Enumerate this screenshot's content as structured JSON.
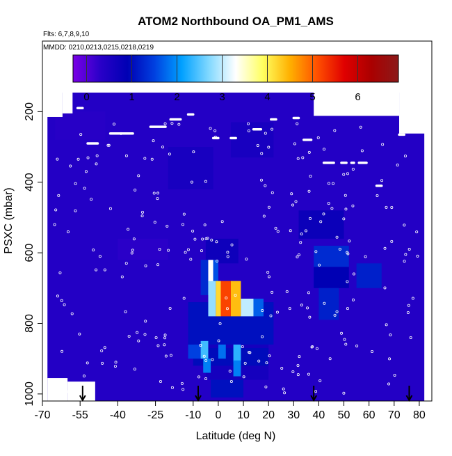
{
  "chart_data": {
    "type": "heatmap",
    "title": "ATOM2 Northbound OA_PM1_AMS",
    "flights_label": "Flts: 6,7,8,9,10",
    "mmdd_label": "MMDD: 0210,0213,0215,0218,0219",
    "xlabel": "Latitude (deg N)",
    "ylabel": "PSXC (mbar)",
    "xlim": [
      -70,
      85
    ],
    "ylim": [
      1020,
      0
    ],
    "x_ticks": [
      -70,
      -55,
      -40,
      -25,
      -10,
      0,
      10,
      20,
      30,
      40,
      50,
      60,
      70,
      80
    ],
    "x_tick_labels": [
      "-70",
      "-55",
      "-40",
      "-25",
      "-10",
      "0",
      "10",
      "20",
      "30",
      "40",
      "50",
      "60",
      "70",
      "80"
    ],
    "y_ticks": [
      200,
      400,
      600,
      800,
      1000
    ],
    "y_tick_labels": [
      "200",
      "400",
      "600",
      "800",
      "1000"
    ],
    "colorbar": {
      "min": -0.3,
      "max": 6.9,
      "ticks": [
        0,
        1,
        2,
        3,
        4,
        5,
        6
      ],
      "tick_labels": [
        "0",
        "1",
        "2",
        "3",
        "4",
        "5",
        "6"
      ],
      "colors": [
        "#7a00e6",
        "#2a00c8",
        "#0000b4",
        "#0040e0",
        "#00a0ff",
        "#80d8ff",
        "#ffffff",
        "#ffff60",
        "#ffb000",
        "#ff5000",
        "#e00000",
        "#aa0000",
        "#8b1a1a"
      ]
    },
    "background_value": 0.4,
    "cells": [
      {
        "lat": [
          -65,
          -45
        ],
        "p": [
          200,
          280
        ],
        "v": 0.35
      },
      {
        "lat": [
          -20,
          -2
        ],
        "p": [
          300,
          420
        ],
        "v": 0.55
      },
      {
        "lat": [
          5,
          22
        ],
        "p": [
          230,
          330
        ],
        "v": 0.55
      },
      {
        "lat": [
          -40,
          -20
        ],
        "p": [
          560,
          620
        ],
        "v": 0.3
      },
      {
        "lat": [
          -5,
          8
        ],
        "p": [
          560,
          630
        ],
        "v": 0.7
      },
      {
        "lat": [
          -5,
          20
        ],
        "p": [
          860,
          960
        ],
        "v": 0.6
      },
      {
        "lat": [
          32,
          50
        ],
        "p": [
          480,
          560
        ],
        "v": 0.75
      },
      {
        "lat": [
          38,
          52
        ],
        "p": [
          580,
          640
        ],
        "v": 1.3
      },
      {
        "lat": [
          38,
          52
        ],
        "p": [
          640,
          700
        ],
        "v": 0.9
      },
      {
        "lat": [
          40,
          48
        ],
        "p": [
          700,
          790
        ],
        "v": 1.2
      },
      {
        "lat": [
          55,
          65
        ],
        "p": [
          630,
          700
        ],
        "v": 1.2
      },
      {
        "lat": [
          -12,
          -7
        ],
        "p": [
          820,
          880
        ],
        "v": 0.9
      },
      {
        "lat": [
          -12,
          22
        ],
        "p": [
          740,
          860
        ],
        "v": 1.05
      },
      {
        "lat": [
          -10,
          20
        ],
        "p": [
          870,
          920
        ],
        "v": 1.0
      },
      {
        "lat": [
          -7,
          -4
        ],
        "p": [
          620,
          720
        ],
        "v": 1.3
      },
      {
        "lat": [
          -4,
          -2
        ],
        "p": [
          620,
          720
        ],
        "v": 3.3
      },
      {
        "lat": [
          -2,
          0
        ],
        "p": [
          620,
          720
        ],
        "v": 1.6
      },
      {
        "lat": [
          -4,
          -1
        ],
        "p": [
          680,
          780
        ],
        "v": 2.8
      },
      {
        "lat": [
          -1,
          1
        ],
        "p": [
          680,
          780
        ],
        "v": 4.2
      },
      {
        "lat": [
          1,
          5
        ],
        "p": [
          680,
          780
        ],
        "v": 5.2
      },
      {
        "lat": [
          5,
          9
        ],
        "p": [
          680,
          780
        ],
        "v": 4.4
      },
      {
        "lat": [
          9,
          14
        ],
        "p": [
          730,
          780
        ],
        "v": 3.0
      },
      {
        "lat": [
          14,
          18
        ],
        "p": [
          730,
          780
        ],
        "v": 1.7
      },
      {
        "lat": [
          -12,
          -7
        ],
        "p": [
          860,
          900
        ],
        "v": 1.5
      },
      {
        "lat": [
          -7,
          -4
        ],
        "p": [
          850,
          900
        ],
        "v": 2.4
      },
      {
        "lat": [
          0,
          3
        ],
        "p": [
          860,
          900
        ],
        "v": 1.8
      },
      {
        "lat": [
          6,
          9
        ],
        "p": [
          860,
          910
        ],
        "v": 2.3
      },
      {
        "lat": [
          -6,
          -3
        ],
        "p": [
          900,
          940
        ],
        "v": 1.9
      },
      {
        "lat": [
          6,
          9
        ],
        "p": [
          905,
          950
        ],
        "v": 1.9
      },
      {
        "lat": [
          -3,
          10
        ],
        "p": [
          960,
          1010
        ],
        "v": 1.05
      }
    ],
    "flight_top_segments": [
      {
        "lat": [
          -56,
          -54
        ],
        "p": 190
      },
      {
        "lat": [
          -52,
          -48
        ],
        "p": 290
      },
      {
        "lat": [
          -43,
          -34
        ],
        "p": 262
      },
      {
        "lat": [
          -27,
          -21
        ],
        "p": 243
      },
      {
        "lat": [
          -19,
          -15
        ],
        "p": 222
      },
      {
        "lat": [
          -12,
          -10
        ],
        "p": 208
      },
      {
        "lat": [
          -2,
          0
        ],
        "p": 275
      },
      {
        "lat": [
          5,
          7
        ],
        "p": 275
      },
      {
        "lat": [
          14,
          17
        ],
        "p": 250
      },
      {
        "lat": [
          21,
          23
        ],
        "p": 222
      },
      {
        "lat": [
          30,
          32
        ],
        "p": 218
      },
      {
        "lat": [
          34,
          37
        ],
        "p": 280
      },
      {
        "lat": [
          42,
          46
        ],
        "p": 345
      },
      {
        "lat": [
          49,
          51
        ],
        "p": 345
      },
      {
        "lat": [
          53,
          54
        ],
        "p": 345
      },
      {
        "lat": [
          56,
          59
        ],
        "p": 345
      },
      {
        "lat": [
          63,
          65
        ],
        "p": 410
      },
      {
        "lat": [
          72,
          74
        ],
        "p": 265
      }
    ],
    "region_gaps": [
      {
        "lat": [
          -70,
          -62
        ],
        "p": [
          0,
          215
        ]
      },
      {
        "lat": [
          -62,
          -58
        ],
        "p": [
          0,
          205
        ]
      },
      {
        "lat": [
          38,
          72
        ],
        "p": [
          0,
          212
        ]
      },
      {
        "lat": [
          72,
          85
        ],
        "p": [
          0,
          262
        ]
      },
      {
        "lat": [
          82,
          85
        ],
        "p": [
          0,
          1020
        ]
      },
      {
        "lat": [
          -68,
          -60
        ],
        "p": [
          955,
          1020
        ]
      },
      {
        "lat": [
          -60,
          -49
        ],
        "p": [
          965,
          1020
        ]
      },
      {
        "lat": [
          -70,
          -68
        ],
        "p": [
          0,
          1020
        ]
      }
    ],
    "profile_markers": [
      {
        "lat": -54,
        "label": "descent"
      },
      {
        "lat": -8,
        "label": "descent"
      },
      {
        "lat": 38,
        "label": "descent"
      },
      {
        "lat": 76,
        "label": "descent"
      }
    ]
  }
}
